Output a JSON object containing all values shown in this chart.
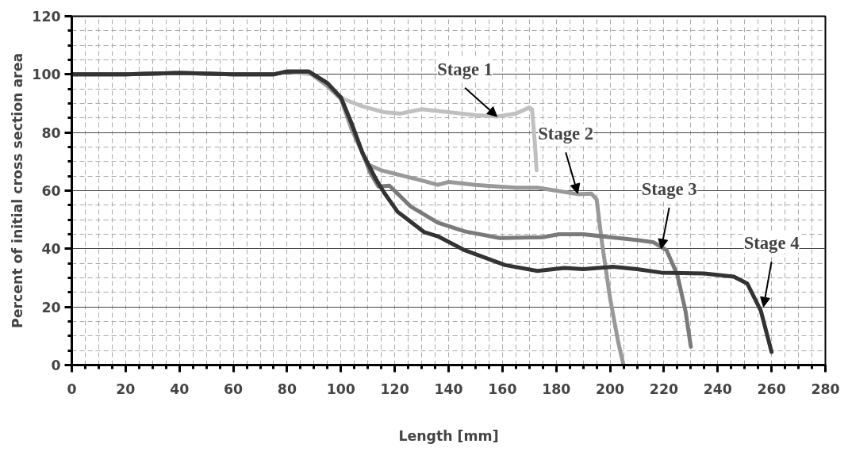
{
  "chart_data": {
    "type": "line",
    "xlabel": "Length [mm]",
    "ylabel": "Percent of initial cross section area",
    "xlim": [
      0,
      280
    ],
    "ylim": [
      0,
      120
    ],
    "xticks": [
      0,
      20,
      40,
      60,
      80,
      100,
      120,
      140,
      160,
      180,
      200,
      220,
      240,
      260,
      280
    ],
    "yticks": [
      0,
      20,
      40,
      60,
      80,
      100,
      120
    ],
    "grid": true,
    "marker": "none",
    "line_style": "solid",
    "series": [
      {
        "color": "#c0c0c0",
        "x": [
          0,
          20,
          40,
          60,
          75,
          80,
          89,
          95,
          101,
          108,
          116,
          122,
          130,
          140,
          150,
          158,
          165,
          170,
          171,
          172,
          172.7
        ],
        "values": [
          100,
          100,
          100.5,
          100,
          100,
          101,
          100,
          96,
          91.5,
          89,
          87,
          86.5,
          88,
          87,
          86,
          85.5,
          86.5,
          88.6,
          88,
          77,
          67
        ]
      },
      {
        "color": "#999999",
        "x": [
          0,
          20,
          40,
          60,
          75,
          80,
          88,
          95,
          100,
          104,
          110,
          115,
          121,
          130,
          136,
          140,
          150,
          156,
          165,
          173,
          180,
          188,
          193,
          195,
          197,
          200,
          203,
          205
        ],
        "values": [
          100,
          100,
          100.5,
          100,
          100,
          101,
          101,
          96,
          91.5,
          81,
          69,
          67,
          65.6,
          63.5,
          62,
          63,
          62,
          61.6,
          61,
          61,
          60,
          58.8,
          59,
          57,
          42,
          23,
          8,
          0
        ]
      },
      {
        "color": "#7a7a7a",
        "x": [
          0,
          20,
          40,
          60,
          75,
          80,
          88,
          95,
          100,
          104,
          108,
          111,
          114,
          118,
          121,
          126,
          136,
          146,
          159,
          175,
          181,
          190,
          200,
          210,
          216,
          221,
          225,
          228,
          230
        ],
        "values": [
          100,
          100,
          100.5,
          100,
          100,
          101,
          101,
          97,
          92,
          83,
          73,
          66,
          61.4,
          61.7,
          59,
          54.5,
          49,
          46,
          43.7,
          44,
          45,
          45,
          44,
          43,
          42.3,
          39.5,
          31,
          18.7,
          6.3
        ]
      },
      {
        "color": "#333333",
        "x": [
          0,
          20,
          40,
          60,
          75,
          80,
          88,
          95,
          100,
          104,
          108,
          113,
          116,
          121,
          131,
          136,
          146,
          161,
          173,
          183,
          190,
          201,
          210,
          219,
          235,
          246,
          251,
          256,
          260
        ],
        "values": [
          100,
          100,
          100.5,
          100,
          100,
          101,
          101,
          97,
          92,
          83,
          73,
          64,
          59.4,
          52.8,
          45.7,
          44.3,
          39.5,
          34.4,
          32.4,
          33.4,
          33,
          33.8,
          33,
          31.8,
          31.5,
          30.4,
          28,
          18.7,
          4.5
        ]
      }
    ],
    "annotations": [
      {
        "text": "Stage 1",
        "x": 158,
        "y": 85.5
      },
      {
        "text": "Stage 2",
        "x": 188,
        "y": 59
      },
      {
        "text": "Stage 3",
        "x": 219,
        "y": 40
      },
      {
        "text": "Stage 4",
        "x": 257,
        "y": 20
      }
    ]
  }
}
